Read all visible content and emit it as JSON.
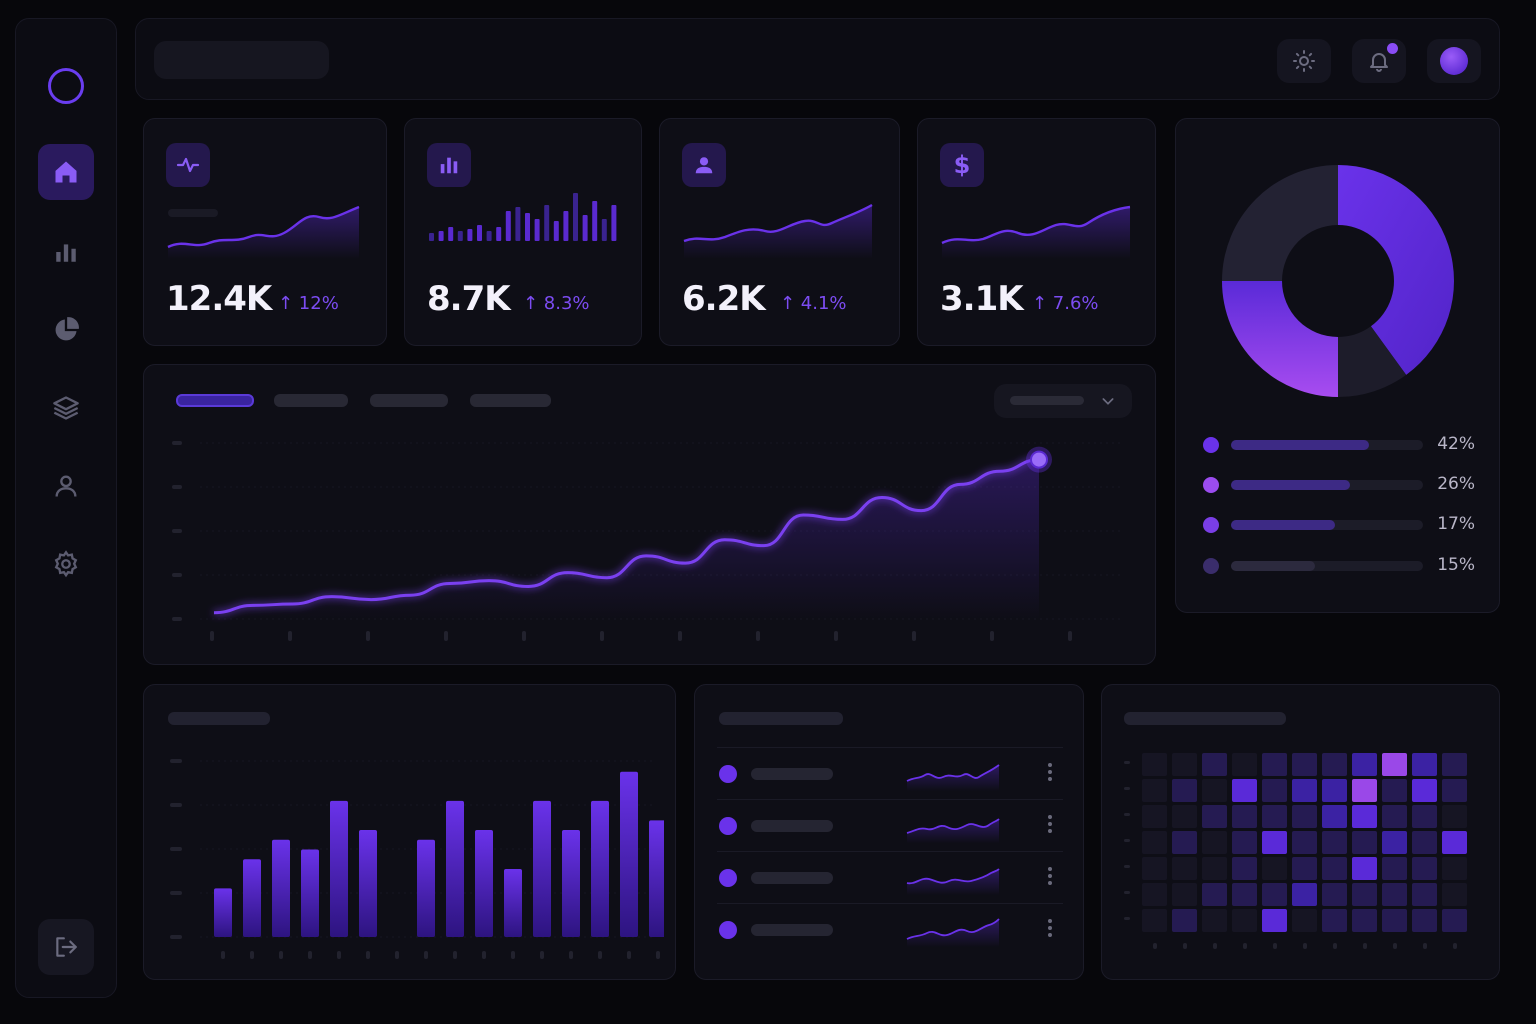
{
  "colors": {
    "background": "#07070b",
    "accent": "#6a32ea",
    "accent_light": "#9b4cf0",
    "accent_soft": "#2a1a5e"
  },
  "sidebar": {
    "logo": "ring-logo",
    "items": [
      {
        "icon": "home-icon",
        "active": true
      },
      {
        "icon": "bar-chart-icon",
        "active": false
      },
      {
        "icon": "pie-chart-icon",
        "active": false
      },
      {
        "icon": "layers-icon",
        "active": false
      },
      {
        "icon": "user-icon",
        "active": false
      },
      {
        "icon": "settings-icon",
        "active": false
      }
    ],
    "logout_icon": "logout-icon"
  },
  "topbar": {
    "buttons": [
      "sun-icon",
      "bell-icon",
      "avatar"
    ],
    "notification_dot": true
  },
  "stats": [
    {
      "icon": "activity-icon",
      "value": "12.4K",
      "change": "↑ 12%"
    },
    {
      "icon": "bar-chart-icon",
      "value": "8.7K",
      "change": "↑ 8.3%"
    },
    {
      "icon": "user-icon",
      "value": "6.2K",
      "change": "↑ 4.1%"
    },
    {
      "icon": "dollar-icon",
      "value": "3.1K",
      "change": "↑ 7.6%"
    }
  ],
  "donut": {
    "legend": [
      {
        "value": 42,
        "label": "42%",
        "color": "#6a32ea"
      },
      {
        "value": 26,
        "label": "26%",
        "color": "#9b4cf0"
      },
      {
        "value": 17,
        "label": "17%",
        "color": "#7a3ee6"
      },
      {
        "value": 15,
        "label": "15%",
        "color": "#3a2d6b"
      }
    ]
  },
  "main_chart": {
    "active_tab": 0,
    "dropdown_icon": "chevron-down-icon"
  },
  "chart_data": [
    {
      "type": "line",
      "series": [
        {
          "values": [
            1,
            2,
            2.2,
            3.2,
            2.8,
            3.4,
            5,
            5.4,
            4.6,
            6.5,
            5.8,
            8.8,
            7.8,
            11,
            10.2,
            14.4,
            13.8,
            16.8,
            15,
            18.6,
            20.4,
            22
          ]
        }
      ]
    },
    {
      "type": "bar",
      "series": [
        {
          "values": [
            5,
            8,
            10,
            9,
            14,
            11,
            0,
            10,
            14,
            11,
            7,
            14,
            11,
            14,
            17,
            12
          ]
        }
      ]
    },
    {
      "type": "heatmap",
      "rows": 7,
      "cols": 11,
      "values": [
        [
          0,
          0,
          1,
          0,
          1,
          1,
          1,
          2,
          4,
          2,
          1
        ],
        [
          0,
          1,
          0,
          3,
          1,
          2,
          2,
          4,
          1,
          3,
          1
        ],
        [
          0,
          0,
          1,
          1,
          1,
          1,
          2,
          3,
          1,
          1,
          0
        ],
        [
          0,
          1,
          0,
          1,
          3,
          1,
          1,
          1,
          2,
          1,
          3
        ],
        [
          0,
          0,
          0,
          1,
          0,
          1,
          1,
          3,
          1,
          1,
          0
        ],
        [
          0,
          0,
          1,
          1,
          1,
          2,
          1,
          1,
          1,
          1,
          0
        ],
        [
          0,
          1,
          0,
          0,
          3,
          0,
          1,
          1,
          1,
          1,
          1
        ]
      ]
    }
  ],
  "list": {
    "rows": [
      {
        "kebab_icon": "kebab-icon"
      },
      {
        "kebab_icon": "kebab-icon"
      },
      {
        "kebab_icon": "kebab-icon"
      },
      {
        "kebab_icon": "kebab-icon"
      }
    ]
  }
}
